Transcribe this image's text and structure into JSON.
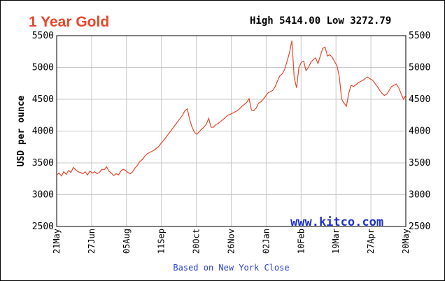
{
  "chart_data": {
    "type": "line",
    "title": "1 Year Gold",
    "stats_text": "High 5414.00 Low 3272.79",
    "ylabel": "USD per ounce",
    "source_note": "Based on New York Close",
    "watermark": "www.kitco.com",
    "ylim": [
      2500,
      5500
    ],
    "yticks": [
      2500,
      3000,
      3500,
      4000,
      4500,
      5000,
      5500
    ],
    "x_start": "21May",
    "x_end": "20May",
    "xticks": [
      "21May",
      "27Jun",
      "05Aug",
      "11Sep",
      "20Oct",
      "26Nov",
      "02Jan",
      "10Feb",
      "19Mar",
      "27Apr",
      "20May"
    ],
    "grid": true,
    "line_color": "#e8462a",
    "series": [
      {
        "values": [
          3310,
          3340,
          3295,
          3360,
          3320,
          3380,
          3350,
          3430,
          3390,
          3360,
          3350,
          3330,
          3360,
          3310,
          3370,
          3340,
          3360,
          3330,
          3350,
          3400,
          3390,
          3440,
          3370,
          3340,
          3300,
          3330,
          3310,
          3370,
          3400,
          3380,
          3350,
          3330,
          3360,
          3420,
          3460,
          3520,
          3550,
          3600,
          3640,
          3660,
          3680,
          3700,
          3730,
          3760,
          3810,
          3850,
          3900,
          3950,
          4000,
          4050,
          4100,
          4150,
          4200,
          4250,
          4320,
          4350,
          4180,
          4060,
          3980,
          3950,
          3990,
          4030,
          4060,
          4110,
          4200,
          4060,
          4060,
          4100,
          4120,
          4150,
          4180,
          4210,
          4250,
          4260,
          4280,
          4300,
          4320,
          4350,
          4390,
          4420,
          4450,
          4510,
          4330,
          4320,
          4360,
          4440,
          4460,
          4500,
          4550,
          4600,
          4620,
          4640,
          4700,
          4790,
          4870,
          4900,
          4970,
          5100,
          5230,
          5420,
          4840,
          4680,
          5000,
          5080,
          5100,
          4950,
          5000,
          5080,
          5120,
          5150,
          5060,
          5180,
          5300,
          5320,
          5180,
          5200,
          5160,
          5090,
          5030,
          4850,
          4500,
          4440,
          4390,
          4600,
          4720,
          4700,
          4730,
          4760,
          4780,
          4800,
          4830,
          4850,
          4820,
          4800,
          4750,
          4700,
          4640,
          4590,
          4560,
          4580,
          4640,
          4700,
          4720,
          4740,
          4680,
          4590,
          4500,
          4560
        ]
      }
    ]
  }
}
